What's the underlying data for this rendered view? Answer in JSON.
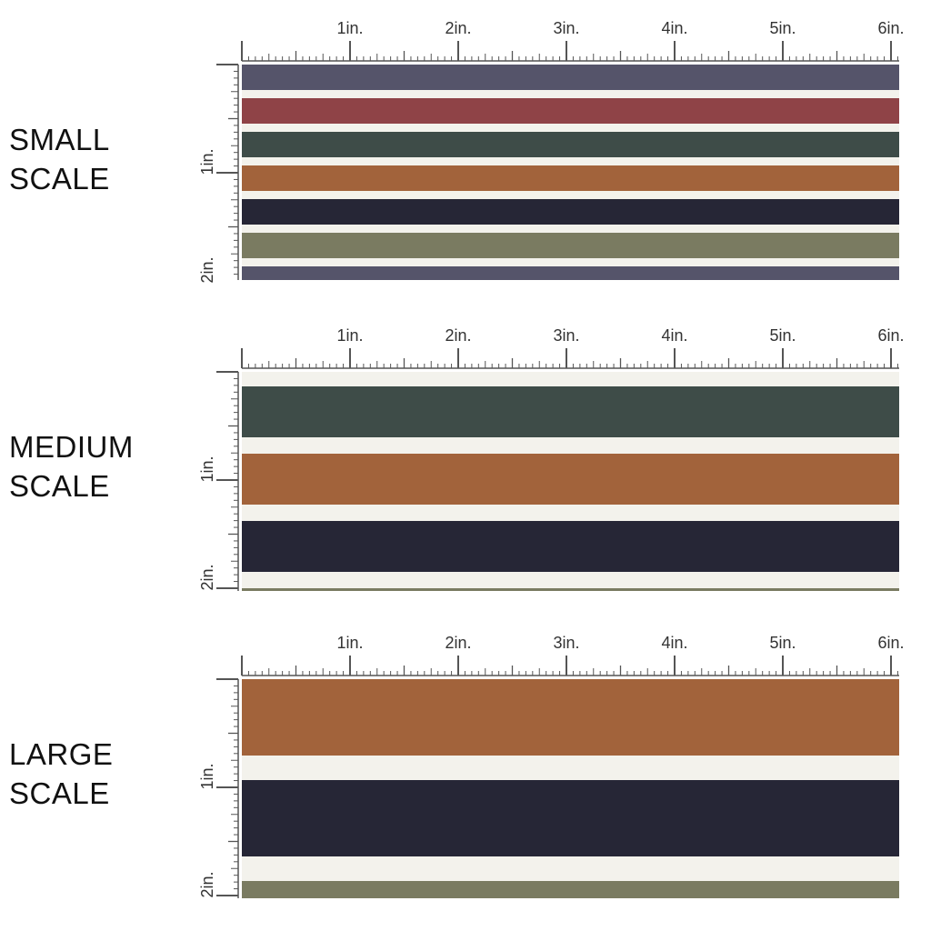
{
  "ruler": {
    "horizontal_labels": [
      "1in.",
      "2in.",
      "3in.",
      "4in.",
      "5in.",
      "6in."
    ],
    "vertical_labels": [
      "1in.",
      "2in."
    ]
  },
  "palette": {
    "slate": "#55546a",
    "burgundy": "#8f4347",
    "forest": "#3e4c48",
    "rust": "#a2633b",
    "navy": "#262636",
    "olive": "#7a7b61",
    "cream": "#f3f2ec"
  },
  "panels": [
    {
      "id": "small",
      "label_lines": [
        "SMALL",
        "SCALE"
      ],
      "stripe_colors": [
        "slate",
        "burgundy",
        "forest",
        "rust",
        "navy",
        "olive",
        "slate"
      ]
    },
    {
      "id": "medium",
      "label_lines": [
        "MEDIUM",
        "SCALE"
      ],
      "stripe_colors": [
        "forest",
        "rust",
        "navy",
        "olive"
      ]
    },
    {
      "id": "large",
      "label_lines": [
        "LARGE",
        "SCALE"
      ],
      "stripe_colors": [
        "rust",
        "navy",
        "olive"
      ]
    }
  ]
}
